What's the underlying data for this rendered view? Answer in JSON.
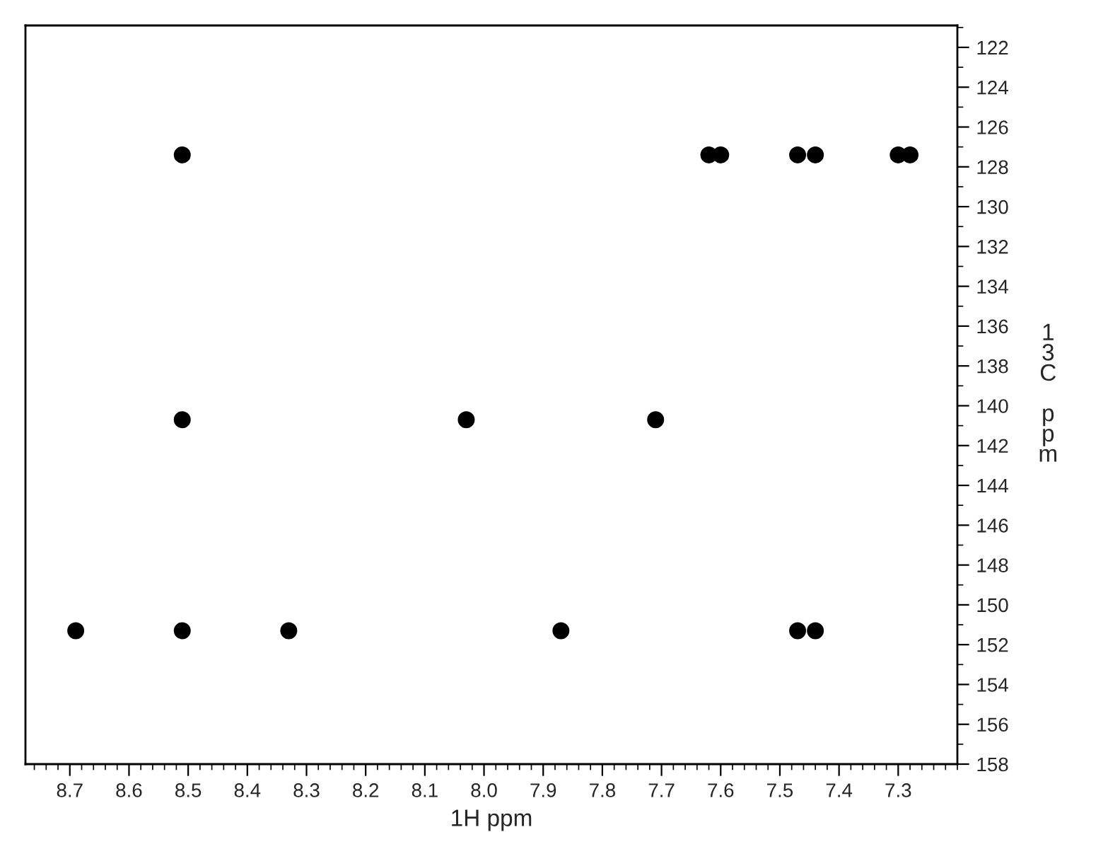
{
  "chart_data": {
    "type": "scatter",
    "xlabel": "1H ppm",
    "ylabel": "13C ppm",
    "x": [
      8.51,
      8.51,
      8.69,
      8.51,
      8.33,
      7.87,
      8.03,
      7.71,
      7.62,
      7.6,
      7.47,
      7.44,
      7.3,
      7.28,
      7.47,
      7.44
    ],
    "values": [
      127.4,
      140.7,
      151.3,
      151.3,
      151.3,
      151.3,
      140.7,
      140.7,
      127.4,
      127.4,
      127.4,
      127.4,
      127.4,
      127.4,
      151.3,
      151.3
    ],
    "color": "#000000",
    "marker": "circle",
    "grid": false,
    "xlim": [
      8.775,
      7.2
    ],
    "ylim": [
      158,
      120.9
    ],
    "xticks": [
      8.7,
      8.6,
      8.5,
      8.4,
      8.3,
      8.2,
      8.1,
      {
        "value": 8.0,
        "label": "8.0"
      },
      7.9,
      7.8,
      7.7,
      7.6,
      7.5,
      7.4,
      7.3
    ],
    "yticks": [
      122,
      124,
      126,
      128,
      130,
      132,
      134,
      136,
      138,
      140,
      142,
      144,
      146,
      148,
      150,
      152,
      154,
      156,
      158
    ]
  }
}
